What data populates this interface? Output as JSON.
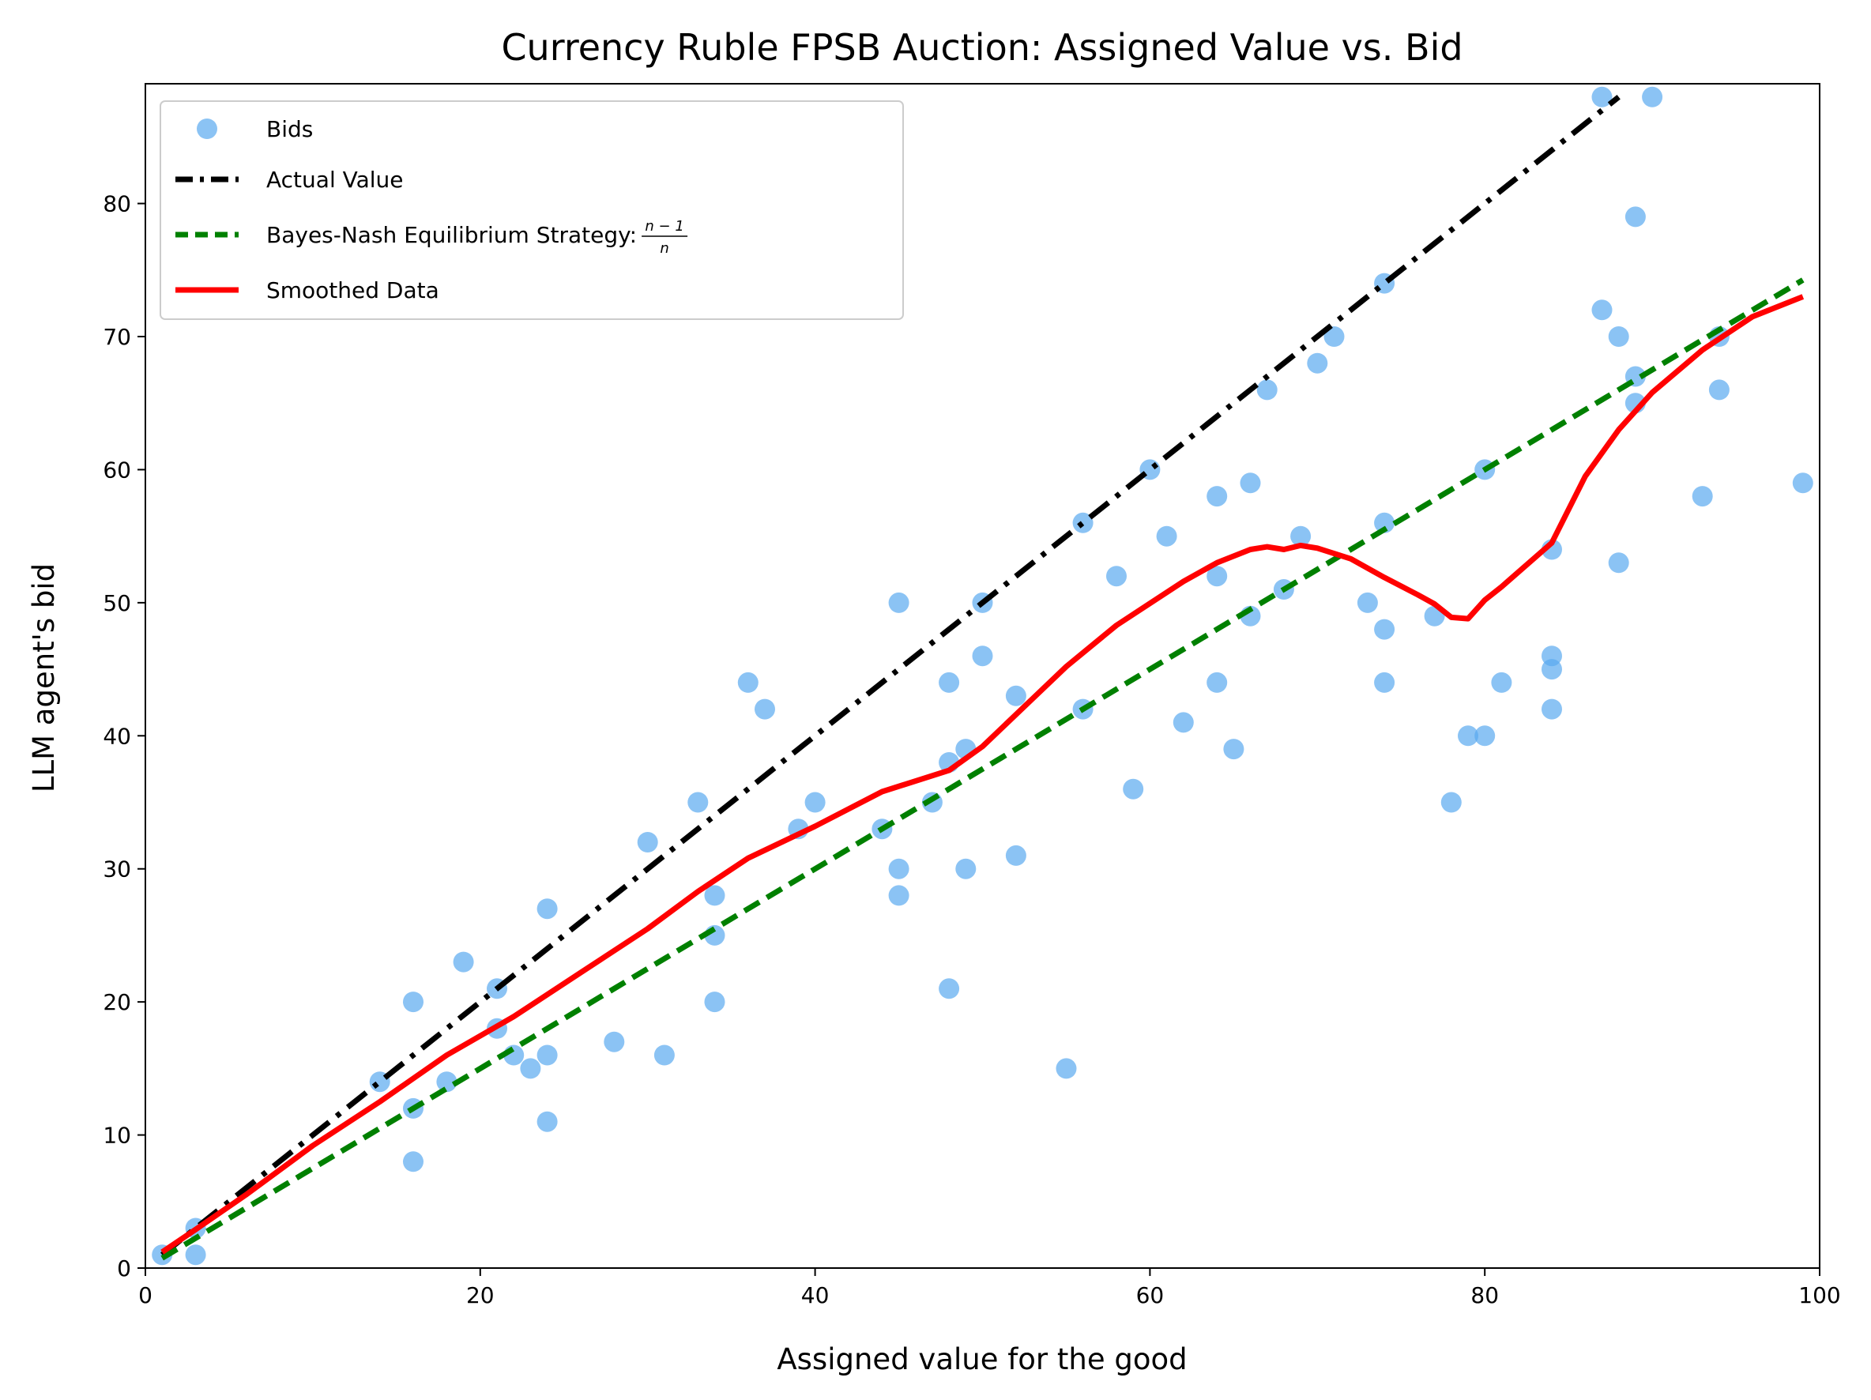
{
  "chart_data": {
    "type": "scatter",
    "title": "Currency Ruble FPSB Auction: Assigned Value vs. Bid",
    "xlabel": "Assigned value for the good",
    "ylabel": "LLM agent's bid",
    "xlim": [
      0,
      100
    ],
    "ylim": [
      0,
      89
    ],
    "xticks": [
      0,
      20,
      40,
      60,
      80,
      100
    ],
    "yticks": [
      0,
      10,
      20,
      30,
      40,
      50,
      60,
      70,
      80
    ],
    "grid": false,
    "legend_position": "upper-left",
    "series": [
      {
        "name": "Bids",
        "kind": "scatter",
        "color": "#5aa9f0",
        "points": [
          [
            1,
            1
          ],
          [
            3,
            3
          ],
          [
            3,
            1
          ],
          [
            14,
            14
          ],
          [
            16,
            20
          ],
          [
            16,
            12
          ],
          [
            16,
            8
          ],
          [
            18,
            14
          ],
          [
            19,
            23
          ],
          [
            21,
            21
          ],
          [
            21,
            18
          ],
          [
            22,
            16
          ],
          [
            23,
            15
          ],
          [
            24,
            27
          ],
          [
            24,
            16
          ],
          [
            24,
            11
          ],
          [
            28,
            17
          ],
          [
            30,
            32
          ],
          [
            31,
            16
          ],
          [
            33,
            35
          ],
          [
            34,
            28
          ],
          [
            34,
            25
          ],
          [
            34,
            20
          ],
          [
            36,
            44
          ],
          [
            37,
            42
          ],
          [
            39,
            33
          ],
          [
            40,
            35
          ],
          [
            44,
            33
          ],
          [
            45,
            50
          ],
          [
            45,
            30
          ],
          [
            45,
            28
          ],
          [
            47,
            35
          ],
          [
            48,
            44
          ],
          [
            48,
            38
          ],
          [
            48,
            21
          ],
          [
            49,
            39
          ],
          [
            49,
            30
          ],
          [
            50,
            50
          ],
          [
            50,
            46
          ],
          [
            52,
            43
          ],
          [
            52,
            31
          ],
          [
            55,
            15
          ],
          [
            56,
            56
          ],
          [
            56,
            42
          ],
          [
            58,
            52
          ],
          [
            59,
            36
          ],
          [
            60,
            60
          ],
          [
            61,
            55
          ],
          [
            62,
            41
          ],
          [
            64,
            58
          ],
          [
            64,
            52
          ],
          [
            64,
            44
          ],
          [
            65,
            39
          ],
          [
            66,
            59
          ],
          [
            66,
            49
          ],
          [
            67,
            66
          ],
          [
            68,
            51
          ],
          [
            69,
            55
          ],
          [
            70,
            68
          ],
          [
            71,
            70
          ],
          [
            73,
            50
          ],
          [
            74,
            74
          ],
          [
            74,
            56
          ],
          [
            74,
            48
          ],
          [
            74,
            44
          ],
          [
            77,
            49
          ],
          [
            78,
            35
          ],
          [
            79,
            40
          ],
          [
            80,
            60
          ],
          [
            80,
            40
          ],
          [
            81,
            44
          ],
          [
            84,
            54
          ],
          [
            84,
            46
          ],
          [
            84,
            45
          ],
          [
            84,
            42
          ],
          [
            87,
            88
          ],
          [
            87,
            72
          ],
          [
            88,
            70
          ],
          [
            88,
            53
          ],
          [
            89,
            79
          ],
          [
            89,
            67
          ],
          [
            89,
            65
          ],
          [
            90,
            88
          ],
          [
            93,
            58
          ],
          [
            94,
            70
          ],
          [
            94,
            66
          ],
          [
            99,
            59
          ]
        ]
      },
      {
        "name": "Actual Value",
        "kind": "line",
        "style": "dashdot",
        "color": "#000000",
        "points": [
          [
            1,
            1
          ],
          [
            88,
            88
          ]
        ]
      },
      {
        "name": "Bayes-Nash Equilibrium Strategy: ",
        "name_fraction": {
          "numerator": "n − 1",
          "denominator": "n"
        },
        "kind": "line",
        "style": "dashed",
        "color": "#008000",
        "points": [
          [
            1,
            0.75
          ],
          [
            99,
            74.25
          ]
        ]
      },
      {
        "name": "Smoothed Data",
        "kind": "line",
        "style": "solid",
        "color": "#ff0000",
        "points": [
          [
            1,
            1.2
          ],
          [
            3,
            2.9
          ],
          [
            6,
            5.5
          ],
          [
            10,
            9.2
          ],
          [
            14,
            12.5
          ],
          [
            18,
            16
          ],
          [
            22,
            18.9
          ],
          [
            26,
            22.2
          ],
          [
            30,
            25.5
          ],
          [
            33,
            28.3
          ],
          [
            36,
            30.8
          ],
          [
            40,
            33.2
          ],
          [
            44,
            35.8
          ],
          [
            48,
            37.4
          ],
          [
            50,
            39.2
          ],
          [
            53,
            42.8
          ],
          [
            55,
            45.2
          ],
          [
            58,
            48.3
          ],
          [
            62,
            51.6
          ],
          [
            64,
            53
          ],
          [
            66,
            54
          ],
          [
            67,
            54.2
          ],
          [
            68,
            54
          ],
          [
            69,
            54.3
          ],
          [
            70,
            54.1
          ],
          [
            72,
            53.3
          ],
          [
            74,
            51.9
          ],
          [
            76,
            50.6
          ],
          [
            77,
            49.9
          ],
          [
            78,
            48.9
          ],
          [
            79,
            48.8
          ],
          [
            80,
            50.2
          ],
          [
            81,
            51.2
          ],
          [
            84,
            54.5
          ],
          [
            86,
            59.5
          ],
          [
            88,
            63
          ],
          [
            90,
            65.8
          ],
          [
            93,
            69
          ],
          [
            96,
            71.5
          ],
          [
            99,
            73
          ]
        ]
      }
    ]
  }
}
